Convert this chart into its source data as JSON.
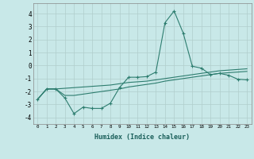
{
  "xlabel": "Humidex (Indice chaleur)",
  "x": [
    0,
    1,
    2,
    3,
    4,
    5,
    6,
    7,
    8,
    9,
    10,
    11,
    12,
    13,
    14,
    15,
    16,
    17,
    18,
    19,
    20,
    21,
    22,
    23
  ],
  "line1": [
    -2.6,
    -1.8,
    -1.8,
    -2.5,
    -3.7,
    -3.2,
    -3.3,
    -3.3,
    -2.9,
    -1.7,
    -0.9,
    -0.9,
    -0.85,
    -0.5,
    3.3,
    4.2,
    2.5,
    -0.05,
    -0.2,
    -0.7,
    -0.6,
    -0.75,
    -1.05,
    -1.1
  ],
  "line2": [
    -2.6,
    -1.8,
    -1.8,
    -2.3,
    -2.3,
    -2.2,
    -2.1,
    -2.0,
    -1.9,
    -1.8,
    -1.65,
    -1.55,
    -1.45,
    -1.35,
    -1.2,
    -1.1,
    -1.0,
    -0.9,
    -0.8,
    -0.7,
    -0.6,
    -0.55,
    -0.5,
    -0.45
  ],
  "line3": [
    -2.6,
    -1.8,
    -1.8,
    -1.75,
    -1.7,
    -1.65,
    -1.6,
    -1.55,
    -1.5,
    -1.4,
    -1.3,
    -1.25,
    -1.2,
    -1.1,
    -1.0,
    -0.9,
    -0.8,
    -0.7,
    -0.6,
    -0.5,
    -0.4,
    -0.35,
    -0.3,
    -0.25
  ],
  "color": "#2d7d6f",
  "bg_color": "#c8e8e8",
  "grid_color": "#b0cecc",
  "ylim": [
    -4.5,
    4.8
  ],
  "xlim": [
    -0.5,
    23.5
  ],
  "yticks": [
    -4,
    -3,
    -2,
    -1,
    0,
    1,
    2,
    3,
    4
  ],
  "xticks": [
    0,
    1,
    2,
    3,
    4,
    5,
    6,
    7,
    8,
    9,
    10,
    11,
    12,
    13,
    14,
    15,
    16,
    17,
    18,
    19,
    20,
    21,
    22,
    23
  ]
}
